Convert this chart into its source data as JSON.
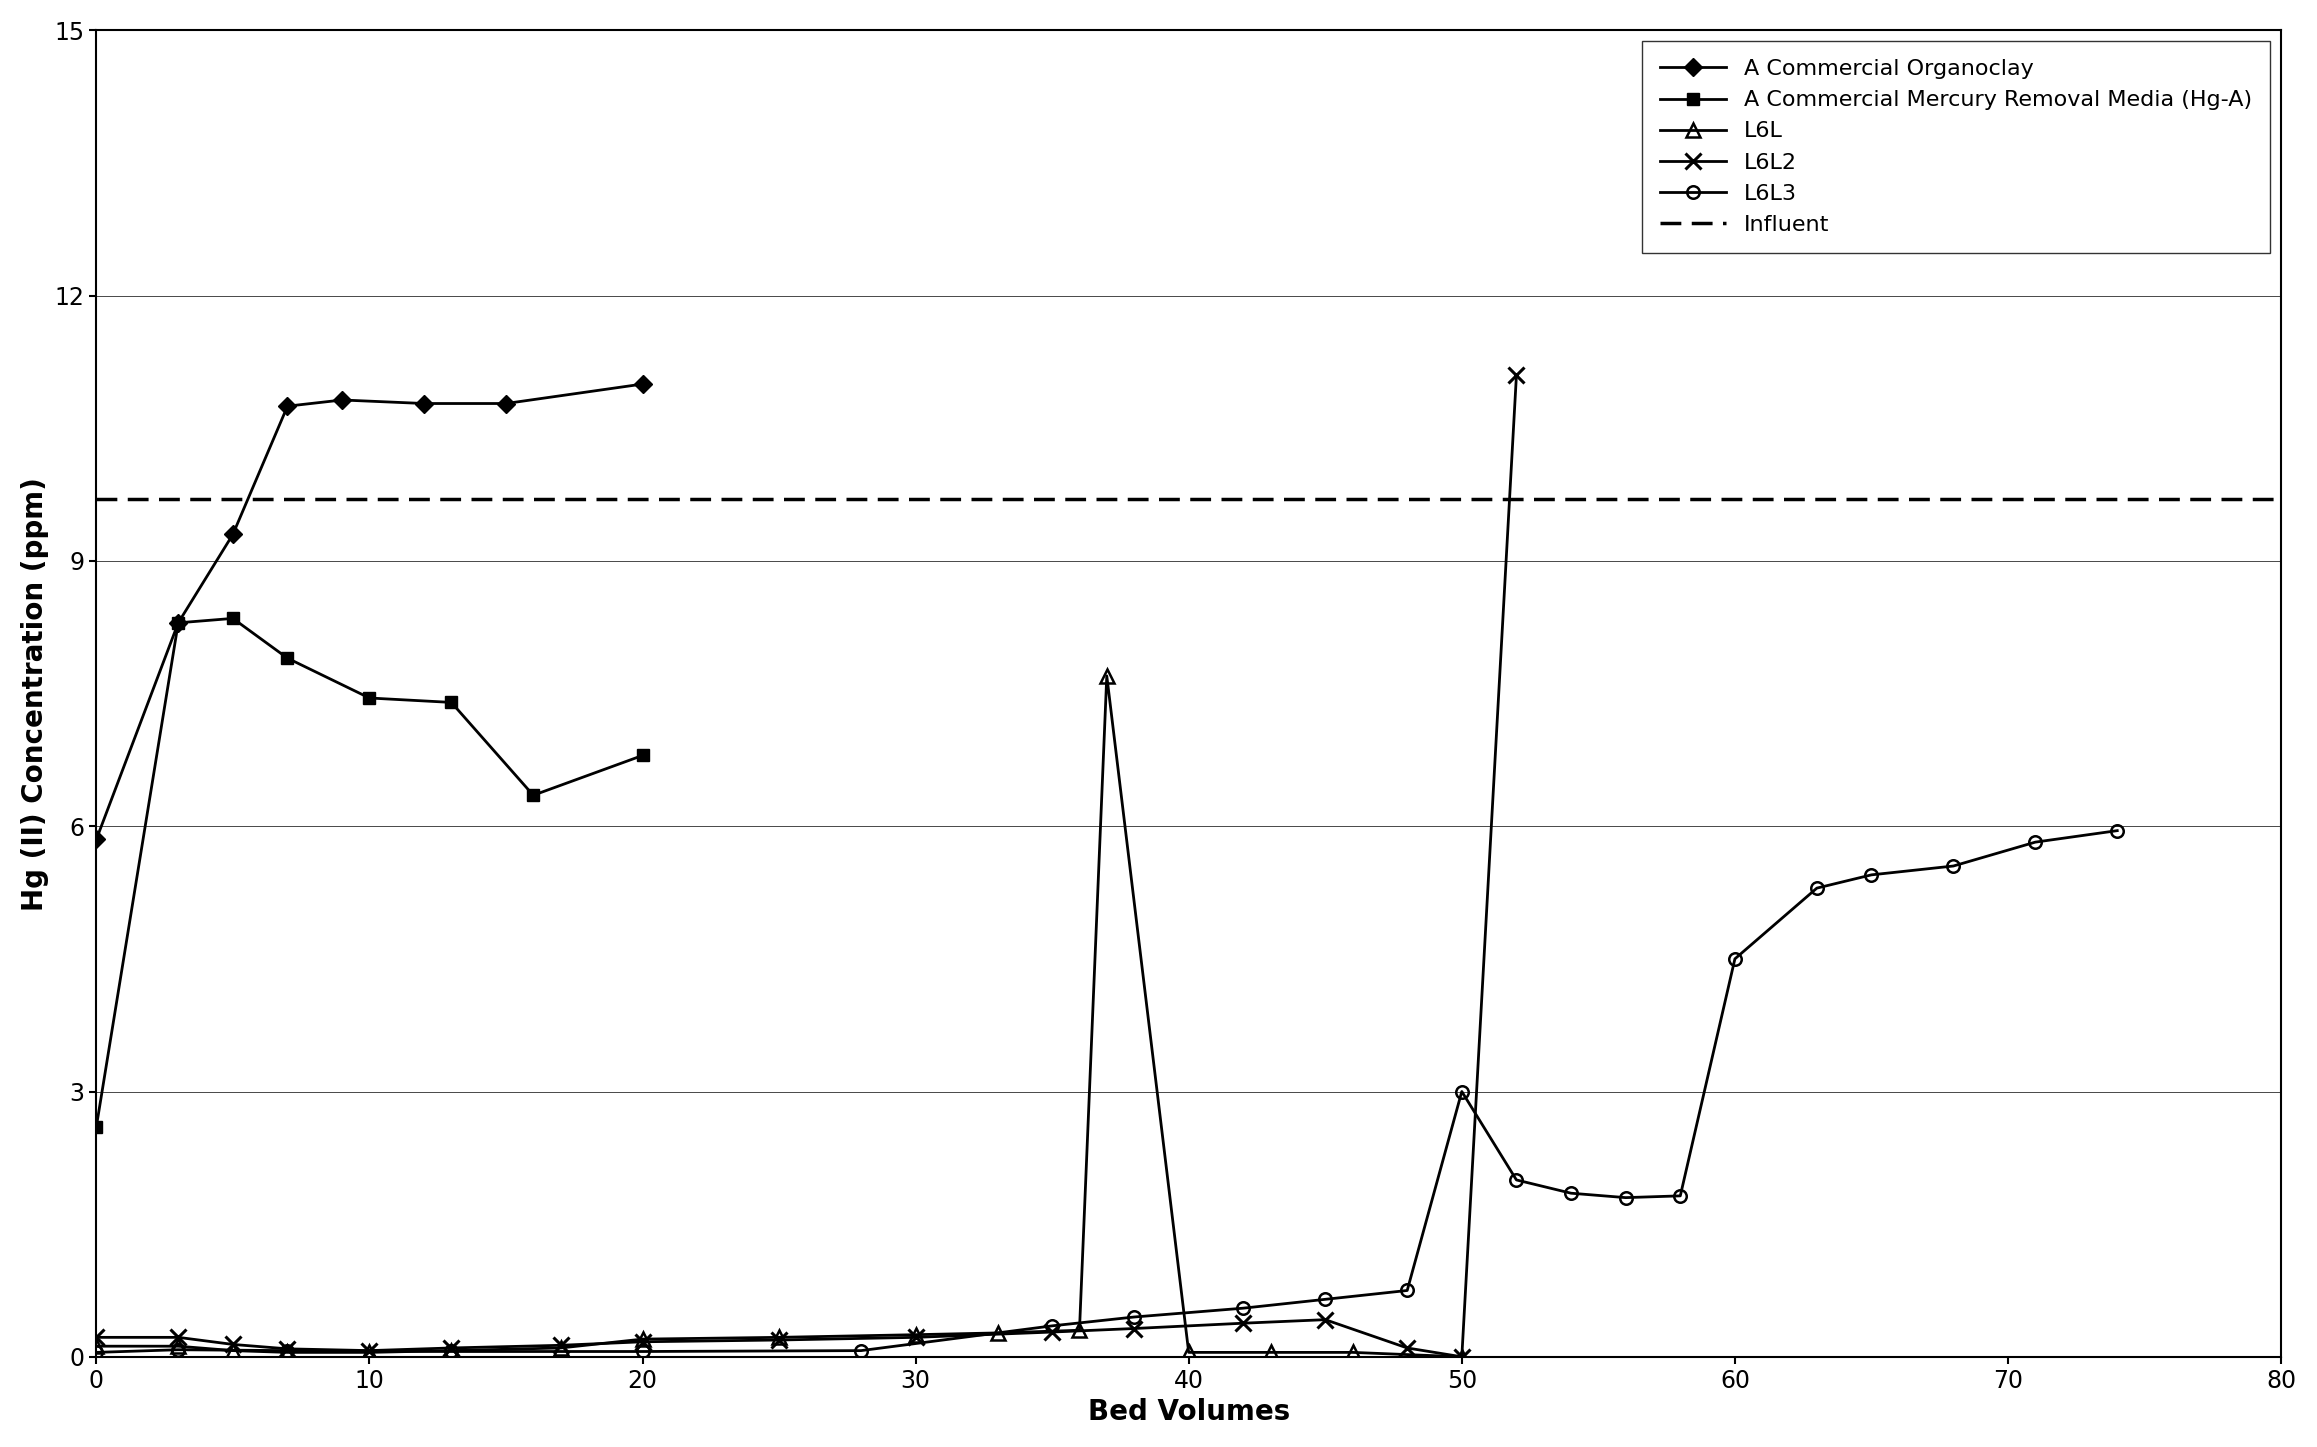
{
  "title": "",
  "xlabel": "Bed Volumes",
  "ylabel": "Hg (II) Concentration (ppm)",
  "xlim": [
    0,
    80
  ],
  "ylim": [
    0,
    15
  ],
  "xticks": [
    0,
    10,
    20,
    30,
    40,
    50,
    60,
    70,
    80
  ],
  "yticks": [
    0,
    3,
    6,
    9,
    12,
    15
  ],
  "influent_y": 9.7,
  "series": {
    "organoclay": {
      "label": "A Commercial Organoclay",
      "marker": "D",
      "color": "#000000",
      "linewidth": 2.0,
      "markersize": 9,
      "x": [
        0,
        3,
        5,
        7,
        9,
        12,
        15,
        20
      ],
      "y": [
        5.85,
        8.3,
        9.3,
        10.75,
        10.82,
        10.78,
        10.78,
        11.0
      ]
    },
    "hga": {
      "label": "A Commercial Mercury Removal Media (Hg-A)",
      "marker": "s",
      "color": "#000000",
      "linewidth": 2.0,
      "markersize": 9,
      "x": [
        0,
        3,
        5,
        7,
        10,
        13,
        16,
        20
      ],
      "y": [
        2.6,
        8.3,
        8.35,
        7.9,
        7.45,
        7.4,
        6.35,
        6.8
      ]
    },
    "l6l": {
      "label": "L6L",
      "marker": "^",
      "color": "#000000",
      "linewidth": 2.0,
      "markersize": 10,
      "x": [
        0,
        3,
        5,
        7,
        10,
        13,
        17,
        20,
        25,
        30,
        33,
        36,
        37,
        40,
        43,
        46,
        50
      ],
      "y": [
        0.12,
        0.12,
        0.07,
        0.05,
        0.05,
        0.07,
        0.1,
        0.2,
        0.22,
        0.25,
        0.27,
        0.3,
        7.7,
        0.05,
        0.05,
        0.05,
        0.0
      ]
    },
    "l6l2": {
      "label": "L6L2",
      "marker": "x",
      "color": "#000000",
      "linewidth": 2.0,
      "markersize": 11,
      "x": [
        0,
        3,
        5,
        7,
        10,
        13,
        17,
        20,
        25,
        30,
        35,
        38,
        42,
        45,
        48,
        50,
        52
      ],
      "y": [
        0.22,
        0.22,
        0.14,
        0.09,
        0.07,
        0.1,
        0.13,
        0.17,
        0.19,
        0.22,
        0.28,
        0.32,
        0.38,
        0.42,
        0.1,
        0.0,
        11.1
      ]
    },
    "l6l3": {
      "label": "L6L3",
      "marker": "o",
      "color": "#000000",
      "linewidth": 2.0,
      "markersize": 9,
      "x": [
        0,
        3,
        7,
        13,
        20,
        28,
        35,
        38,
        42,
        45,
        48,
        50,
        52,
        54,
        56,
        58,
        60,
        63,
        65,
        68,
        71,
        74
      ],
      "y": [
        0.05,
        0.08,
        0.07,
        0.06,
        0.06,
        0.07,
        0.35,
        0.45,
        0.55,
        0.65,
        0.75,
        3.0,
        2.0,
        1.85,
        1.8,
        1.82,
        4.5,
        5.3,
        5.45,
        5.55,
        5.82,
        5.95
      ]
    }
  },
  "background_color": "#ffffff",
  "legend_fontsize": 16,
  "axis_fontsize": 20,
  "tick_fontsize": 17
}
